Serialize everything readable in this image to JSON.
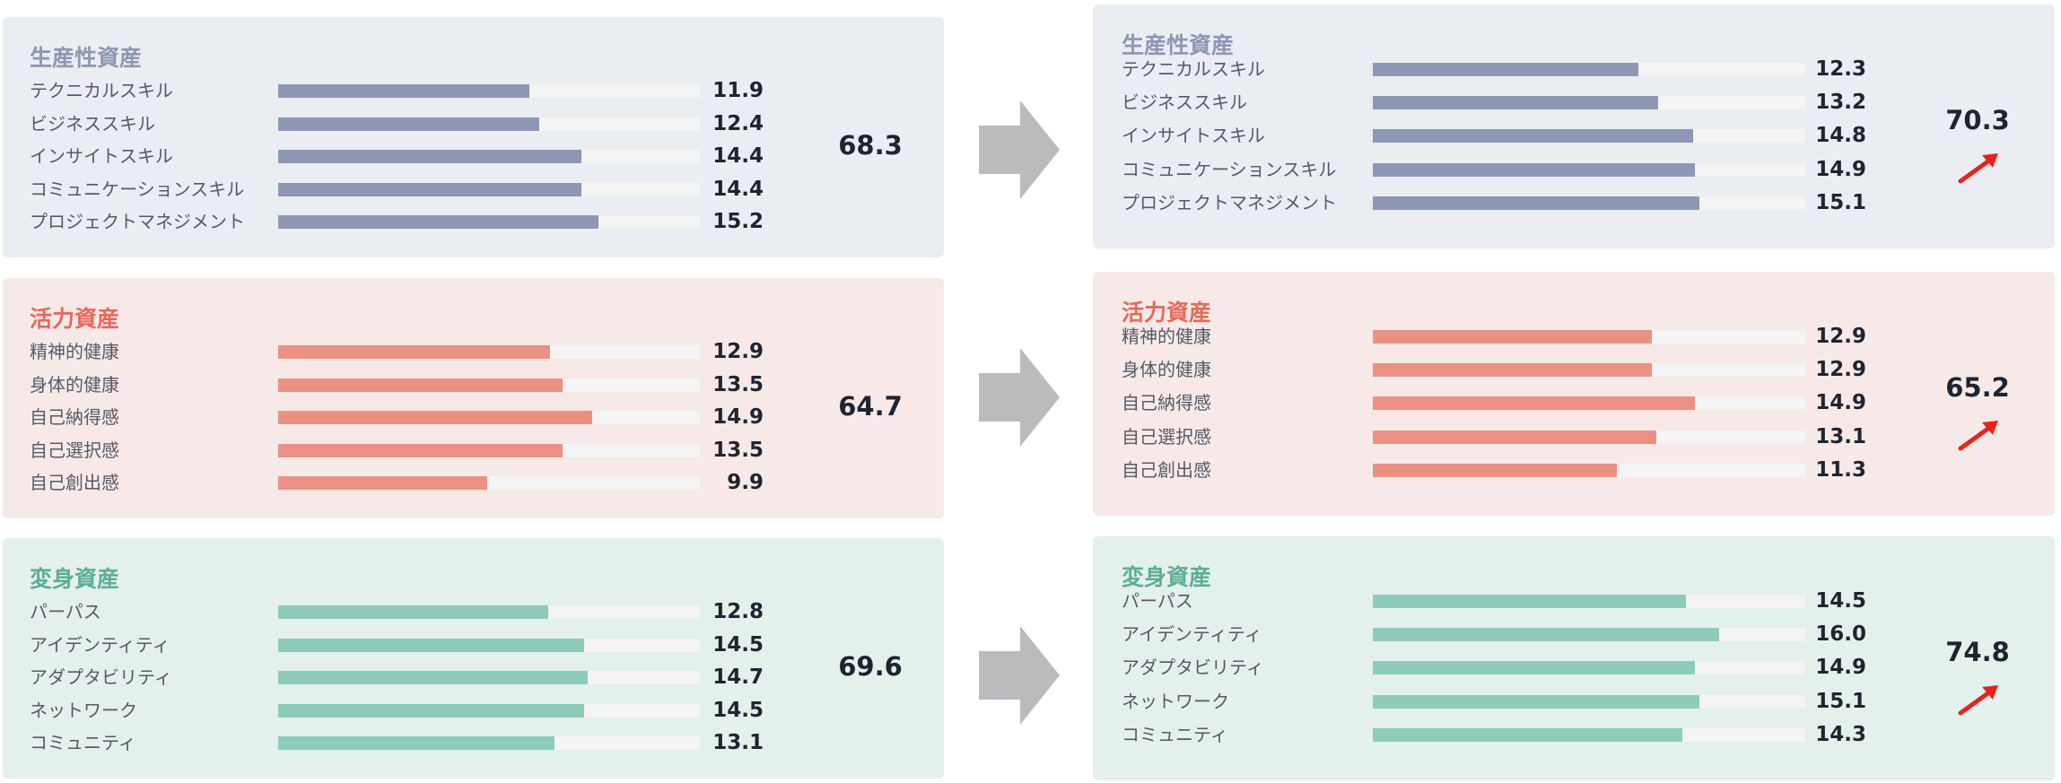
{
  "chart_data": {
    "type": "bar",
    "before": [
      {
        "group": "生産性資産",
        "total": "68.3",
        "color": "#8e97b3",
        "bg": "#eaedf1",
        "title_color": "#8e97b3",
        "categories": [
          "テクニカルスキル",
          "ビジネススキル",
          "インサイトスキル",
          "コミュニケーションスキル",
          "プロジェクトマネジメント"
        ],
        "values": [
          11.9,
          12.4,
          14.4,
          14.4,
          15.2
        ]
      },
      {
        "group": "活力資産",
        "total": "64.7",
        "color": "#eb9183",
        "bg": "#f7e9e7",
        "title_color": "#e56a5a",
        "categories": [
          "精神的健康",
          "身体的健康",
          "自己納得感",
          "自己選択感",
          "自己創出感"
        ],
        "values": [
          12.9,
          13.5,
          14.9,
          13.5,
          9.9
        ]
      },
      {
        "group": "変身資産",
        "total": "69.6",
        "color": "#8ecbbb",
        "bg": "#e3f0ec",
        "title_color": "#5cae97",
        "categories": [
          "パーパス",
          "アイデンティティ",
          "アダプタビリティ",
          "ネットワーク",
          "コミュニティ"
        ],
        "values": [
          12.8,
          14.5,
          14.7,
          14.5,
          13.1
        ]
      }
    ],
    "after": [
      {
        "group": "生産性資産",
        "total": "70.3",
        "color": "#8e97b3",
        "bg": "#eaedf1",
        "title_color": "#8e97b3",
        "categories": [
          "テクニカルスキル",
          "ビジネススキル",
          "インサイトスキル",
          "コミュニケーションスキル",
          "プロジェクトマネジメント"
        ],
        "values": [
          12.3,
          13.2,
          14.8,
          14.9,
          15.1
        ]
      },
      {
        "group": "活力資産",
        "total": "65.2",
        "color": "#eb9183",
        "bg": "#f7e9e7",
        "title_color": "#e56a5a",
        "categories": [
          "精神的健康",
          "身体的健康",
          "自己納得感",
          "自己選択感",
          "自己創出感"
        ],
        "values": [
          12.9,
          12.9,
          14.9,
          13.1,
          11.3
        ]
      },
      {
        "group": "変身資産",
        "total": "74.8",
        "color": "#8ecbbb",
        "bg": "#e3f0ec",
        "title_color": "#5cae97",
        "categories": [
          "パーパス",
          "アイデンティティ",
          "アダプタビリティ",
          "ネットワーク",
          "コミュニティ"
        ],
        "values": [
          14.5,
          16.0,
          14.9,
          15.1,
          14.3
        ]
      }
    ],
    "bar_max": 20,
    "arrow_color": "#b9bbbd",
    "trend_color": "#e8231c"
  }
}
